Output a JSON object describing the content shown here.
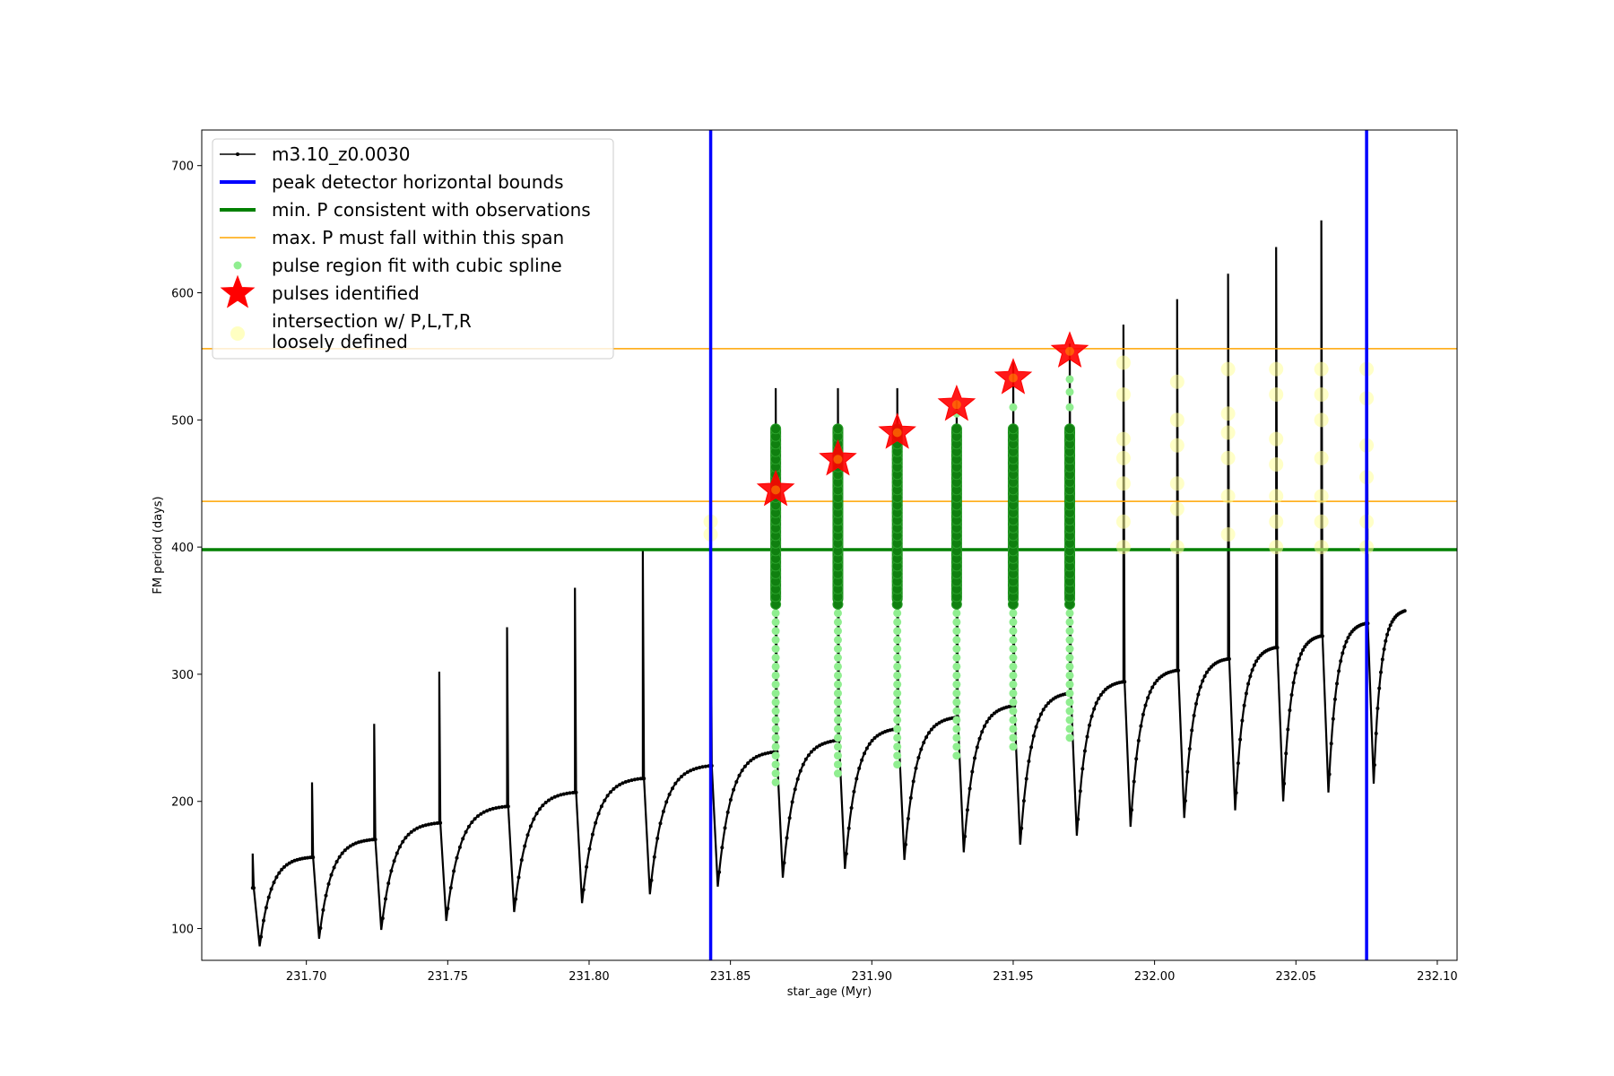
{
  "chart_data": {
    "type": "line",
    "title": "",
    "xlabel": "star_age (Myr)",
    "ylabel": "FM period (days)",
    "xlim": [
      231.663,
      232.107
    ],
    "ylim": [
      75,
      728
    ],
    "x_ticks": [
      "231.70",
      "231.75",
      "231.80",
      "231.85",
      "231.90",
      "231.95",
      "232.00",
      "232.05",
      "232.10"
    ],
    "x_tick_values": [
      231.7,
      231.75,
      231.8,
      231.85,
      231.9,
      231.95,
      232.0,
      232.05,
      232.1
    ],
    "y_ticks": [
      "100",
      "200",
      "300",
      "400",
      "500",
      "600",
      "700"
    ],
    "y_tick_values": [
      100,
      200,
      300,
      400,
      500,
      600,
      700
    ],
    "grid": false,
    "legend_position": "top-left",
    "colors": {
      "model": "#000000",
      "bounds": "#0000ff",
      "min_p": "#008000",
      "max_p_span": "#ffa500",
      "spline": "#90ee90",
      "pulse_star": "#ff0000",
      "intersection": "#ffff99"
    },
    "legend": [
      "m3.10_z0.0030",
      "peak detector horizontal bounds",
      "min. P consistent with observations",
      "max. P must fall within this span",
      "pulse region fit with cubic spline",
      "pulses identified",
      "intersection w/ P,L,T,R",
      "loosely defined"
    ],
    "cycles": [
      {
        "x0": 231.681,
        "start": 132,
        "min": 86,
        "plateau": 156,
        "peak": 159
      },
      {
        "x0": 231.702,
        "start": 156,
        "min": 92,
        "plateau": 170,
        "peak": 215
      },
      {
        "x0": 231.724,
        "start": 170,
        "min": 99,
        "plateau": 183,
        "peak": 261
      },
      {
        "x0": 231.747,
        "start": 183,
        "min": 106,
        "plateau": 196,
        "peak": 302
      },
      {
        "x0": 231.771,
        "start": 196,
        "min": 113,
        "plateau": 207,
        "peak": 337
      },
      {
        "x0": 231.795,
        "start": 207,
        "min": 120,
        "plateau": 218,
        "peak": 368
      },
      {
        "x0": 231.819,
        "start": 218,
        "min": 127,
        "plateau": 228,
        "peak": 397
      },
      {
        "x0": 231.843,
        "start": 228,
        "min": 133,
        "plateau": 239,
        "peak": 380
      },
      {
        "x0": 231.866,
        "start": 239,
        "min": 140,
        "plateau": 248,
        "peak": 525
      },
      {
        "x0": 231.888,
        "start": 248,
        "min": 147,
        "plateau": 257,
        "peak": 525
      },
      {
        "x0": 231.909,
        "start": 257,
        "min": 154,
        "plateau": 266,
        "peak": 525
      },
      {
        "x0": 231.93,
        "start": 266,
        "min": 160,
        "plateau": 275,
        "peak": 515
      },
      {
        "x0": 231.95,
        "start": 275,
        "min": 166,
        "plateau": 285,
        "peak": 545
      },
      {
        "x0": 231.97,
        "start": 285,
        "min": 173,
        "plateau": 294,
        "peak": 560
      },
      {
        "x0": 231.989,
        "start": 294,
        "min": 180,
        "plateau": 303,
        "peak": 575
      },
      {
        "x0": 232.008,
        "start": 303,
        "min": 187,
        "plateau": 312,
        "peak": 595
      },
      {
        "x0": 232.026,
        "start": 312,
        "min": 193,
        "plateau": 321,
        "peak": 615
      },
      {
        "x0": 232.043,
        "start": 321,
        "min": 200,
        "plateau": 330,
        "peak": 636
      },
      {
        "x0": 232.059,
        "start": 330,
        "min": 207,
        "plateau": 340,
        "peak": 657
      },
      {
        "x0": 232.075,
        "start": 340,
        "min": 214,
        "plateau": 350,
        "peak": 680,
        "end": 232.089
      }
    ],
    "bounds_x": [
      231.843,
      232.075
    ],
    "min_p": 398,
    "max_p_span": [
      436,
      556
    ],
    "spline_regions": [
      {
        "x": 231.866,
        "y_low": 215,
        "y_high": 355,
        "dense_low": 355,
        "dense_high": 497
      },
      {
        "x": 231.888,
        "y_low": 222,
        "y_high": 355,
        "dense_low": 355,
        "dense_high": 497
      },
      {
        "x": 231.909,
        "y_low": 229,
        "y_high": 355,
        "dense_low": 355,
        "dense_high": 497
      },
      {
        "x": 231.93,
        "y_low": 236,
        "y_high": 355,
        "dense_low": 355,
        "dense_high": 497
      },
      {
        "x": 231.95,
        "y_low": 243,
        "y_high": 355,
        "dense_low": 355,
        "dense_high": 497
      },
      {
        "x": 231.97,
        "y_low": 250,
        "y_high": 355,
        "dense_low": 355,
        "dense_high": 497
      }
    ],
    "spline_extra_points": [
      [
        231.93,
        505
      ],
      [
        231.95,
        510
      ],
      [
        231.97,
        510
      ],
      [
        231.97,
        522
      ],
      [
        231.97,
        532
      ]
    ],
    "pulses": [
      {
        "x": 231.866,
        "y": 445
      },
      {
        "x": 231.888,
        "y": 469
      },
      {
        "x": 231.909,
        "y": 490
      },
      {
        "x": 231.93,
        "y": 512
      },
      {
        "x": 231.95,
        "y": 533
      },
      {
        "x": 231.97,
        "y": 554
      }
    ],
    "intersections": [
      {
        "x": 231.843,
        "ys": [
          410,
          420
        ]
      },
      {
        "x": 231.989,
        "ys": [
          400,
          420,
          450,
          470,
          485,
          520,
          545
        ]
      },
      {
        "x": 232.008,
        "ys": [
          400,
          430,
          450,
          480,
          500,
          530
        ]
      },
      {
        "x": 232.026,
        "ys": [
          410,
          440,
          470,
          490,
          505,
          540
        ]
      },
      {
        "x": 232.043,
        "ys": [
          400,
          420,
          440,
          465,
          485,
          520,
          540
        ]
      },
      {
        "x": 232.059,
        "ys": [
          400,
          420,
          440,
          470,
          500,
          520,
          540
        ]
      },
      {
        "x": 232.075,
        "ys": [
          400,
          420,
          455,
          480,
          517,
          540
        ]
      }
    ]
  }
}
